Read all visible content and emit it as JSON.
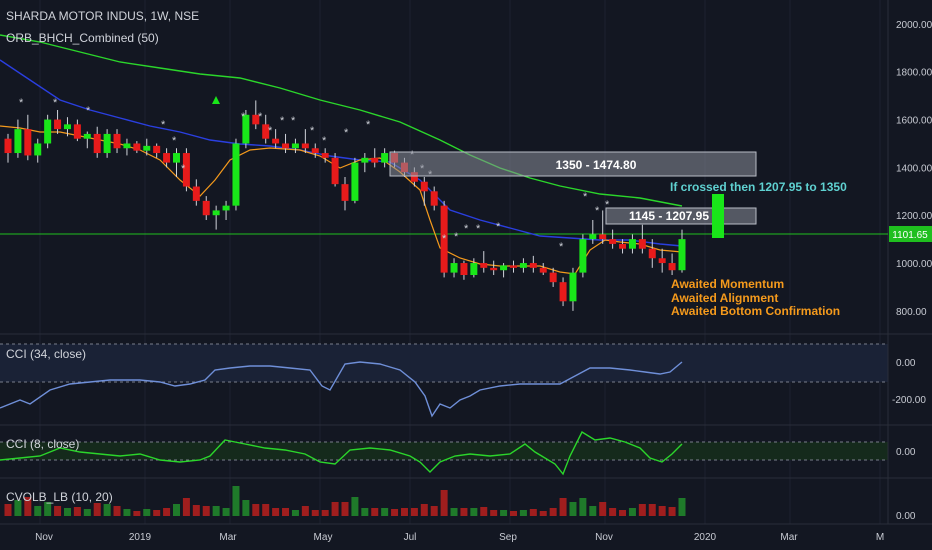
{
  "header": {
    "symbol_line": "SHARDA MOTOR INDUS, 1W, NSE",
    "indicator_line": "ORB_BHCH_Combined (50)"
  },
  "colors": {
    "background": "#131722",
    "grid": "#1e2230",
    "up": "#19e619",
    "down": "#e81b1b",
    "ma_green": "#2bd62b",
    "ma_blue": "#2a3fe0",
    "ma_orange": "#f59a1c",
    "cci_line": "#6f8fd8",
    "price_line": "#1fbf1f",
    "annotation_orange": "#f59a1c",
    "annotation_cyan": "#5fd1d1",
    "text": "#c8cbd3"
  },
  "price_tag": "1101.65",
  "annotations": {
    "zone_upper": "1350 - 1474.80",
    "zone_lower": "1145 - 1207.95",
    "crossed_note": "If crossed then 1207.95 to 1350",
    "awaited": [
      "Awaited Momentum",
      "Awaited Alignment",
      "Awaited Bottom Confirmation"
    ]
  },
  "panes": {
    "cci34_label": "CCI (34, close)",
    "cci8_label": "CCI (8, close)",
    "cvol_label": "CVOLB_LB (10, 20)"
  },
  "chart_data": {
    "type": "candlestick",
    "price_axis": {
      "ylim": [
        720,
        2100
      ],
      "ticks": [
        "800.00",
        "1000.00",
        "1200.00",
        "1400.00",
        "1600.00",
        "1800.00",
        "2000.00"
      ]
    },
    "time_axis": {
      "labels": [
        "Nov",
        "2019",
        "Mar",
        "May",
        "Jul",
        "Sep",
        "Nov",
        "2020",
        "Mar",
        "M"
      ]
    },
    "candles": [
      [
        1520,
        1540,
        1420,
        1460
      ],
      [
        1460,
        1600,
        1440,
        1560
      ],
      [
        1560,
        1620,
        1430,
        1450
      ],
      [
        1450,
        1520,
        1420,
        1500
      ],
      [
        1500,
        1620,
        1480,
        1600
      ],
      [
        1600,
        1640,
        1540,
        1560
      ],
      [
        1560,
        1610,
        1530,
        1580
      ],
      [
        1580,
        1600,
        1510,
        1520
      ],
      [
        1520,
        1550,
        1480,
        1540
      ],
      [
        1540,
        1570,
        1440,
        1460
      ],
      [
        1460,
        1560,
        1440,
        1540
      ],
      [
        1540,
        1560,
        1460,
        1480
      ],
      [
        1480,
        1520,
        1450,
        1500
      ],
      [
        1500,
        1510,
        1460,
        1470
      ],
      [
        1470,
        1520,
        1450,
        1490
      ],
      [
        1490,
        1500,
        1440,
        1460
      ],
      [
        1460,
        1480,
        1400,
        1420
      ],
      [
        1420,
        1480,
        1360,
        1460
      ],
      [
        1460,
        1480,
        1300,
        1320
      ],
      [
        1320,
        1350,
        1240,
        1260
      ],
      [
        1260,
        1280,
        1180,
        1200
      ],
      [
        1200,
        1240,
        1140,
        1220
      ],
      [
        1220,
        1260,
        1180,
        1240
      ],
      [
        1240,
        1520,
        1220,
        1500
      ],
      [
        1500,
        1640,
        1480,
        1620
      ],
      [
        1620,
        1680,
        1560,
        1580
      ],
      [
        1580,
        1620,
        1500,
        1520
      ],
      [
        1520,
        1560,
        1480,
        1500
      ],
      [
        1500,
        1540,
        1460,
        1480
      ],
      [
        1480,
        1520,
        1460,
        1500
      ],
      [
        1500,
        1560,
        1460,
        1480
      ],
      [
        1480,
        1500,
        1440,
        1460
      ],
      [
        1460,
        1480,
        1420,
        1440
      ],
      [
        1440,
        1460,
        1320,
        1330
      ],
      [
        1330,
        1360,
        1220,
        1260
      ],
      [
        1260,
        1440,
        1250,
        1420
      ],
      [
        1420,
        1460,
        1380,
        1440
      ],
      [
        1440,
        1480,
        1400,
        1420
      ],
      [
        1420,
        1480,
        1400,
        1460
      ],
      [
        1460,
        1470,
        1400,
        1420
      ],
      [
        1420,
        1440,
        1360,
        1380
      ],
      [
        1380,
        1400,
        1320,
        1340
      ],
      [
        1340,
        1360,
        1240,
        1300
      ],
      [
        1300,
        1320,
        1220,
        1240
      ],
      [
        1240,
        1260,
        940,
        960
      ],
      [
        960,
        1020,
        940,
        1000
      ],
      [
        1000,
        1010,
        930,
        950
      ],
      [
        950,
        1020,
        940,
        1000
      ],
      [
        1000,
        1050,
        960,
        980
      ],
      [
        980,
        1010,
        950,
        970
      ],
      [
        970,
        1000,
        940,
        990
      ],
      [
        990,
        1010,
        960,
        980
      ],
      [
        980,
        1020,
        960,
        1000
      ],
      [
        1000,
        1030,
        960,
        980
      ],
      [
        980,
        1000,
        950,
        960
      ],
      [
        960,
        980,
        900,
        920
      ],
      [
        920,
        940,
        820,
        840
      ],
      [
        840,
        980,
        800,
        960
      ],
      [
        960,
        1120,
        940,
        1100
      ],
      [
        1100,
        1180,
        1080,
        1120
      ],
      [
        1120,
        1220,
        1080,
        1100
      ],
      [
        1100,
        1140,
        1060,
        1080
      ],
      [
        1080,
        1100,
        1040,
        1060
      ],
      [
        1060,
        1120,
        1040,
        1100
      ],
      [
        1100,
        1160,
        1040,
        1060
      ],
      [
        1060,
        1100,
        980,
        1020
      ],
      [
        1020,
        1060,
        960,
        1000
      ],
      [
        1000,
        1040,
        950,
        970
      ],
      [
        970,
        1140,
        960,
        1100
      ]
    ]
  }
}
